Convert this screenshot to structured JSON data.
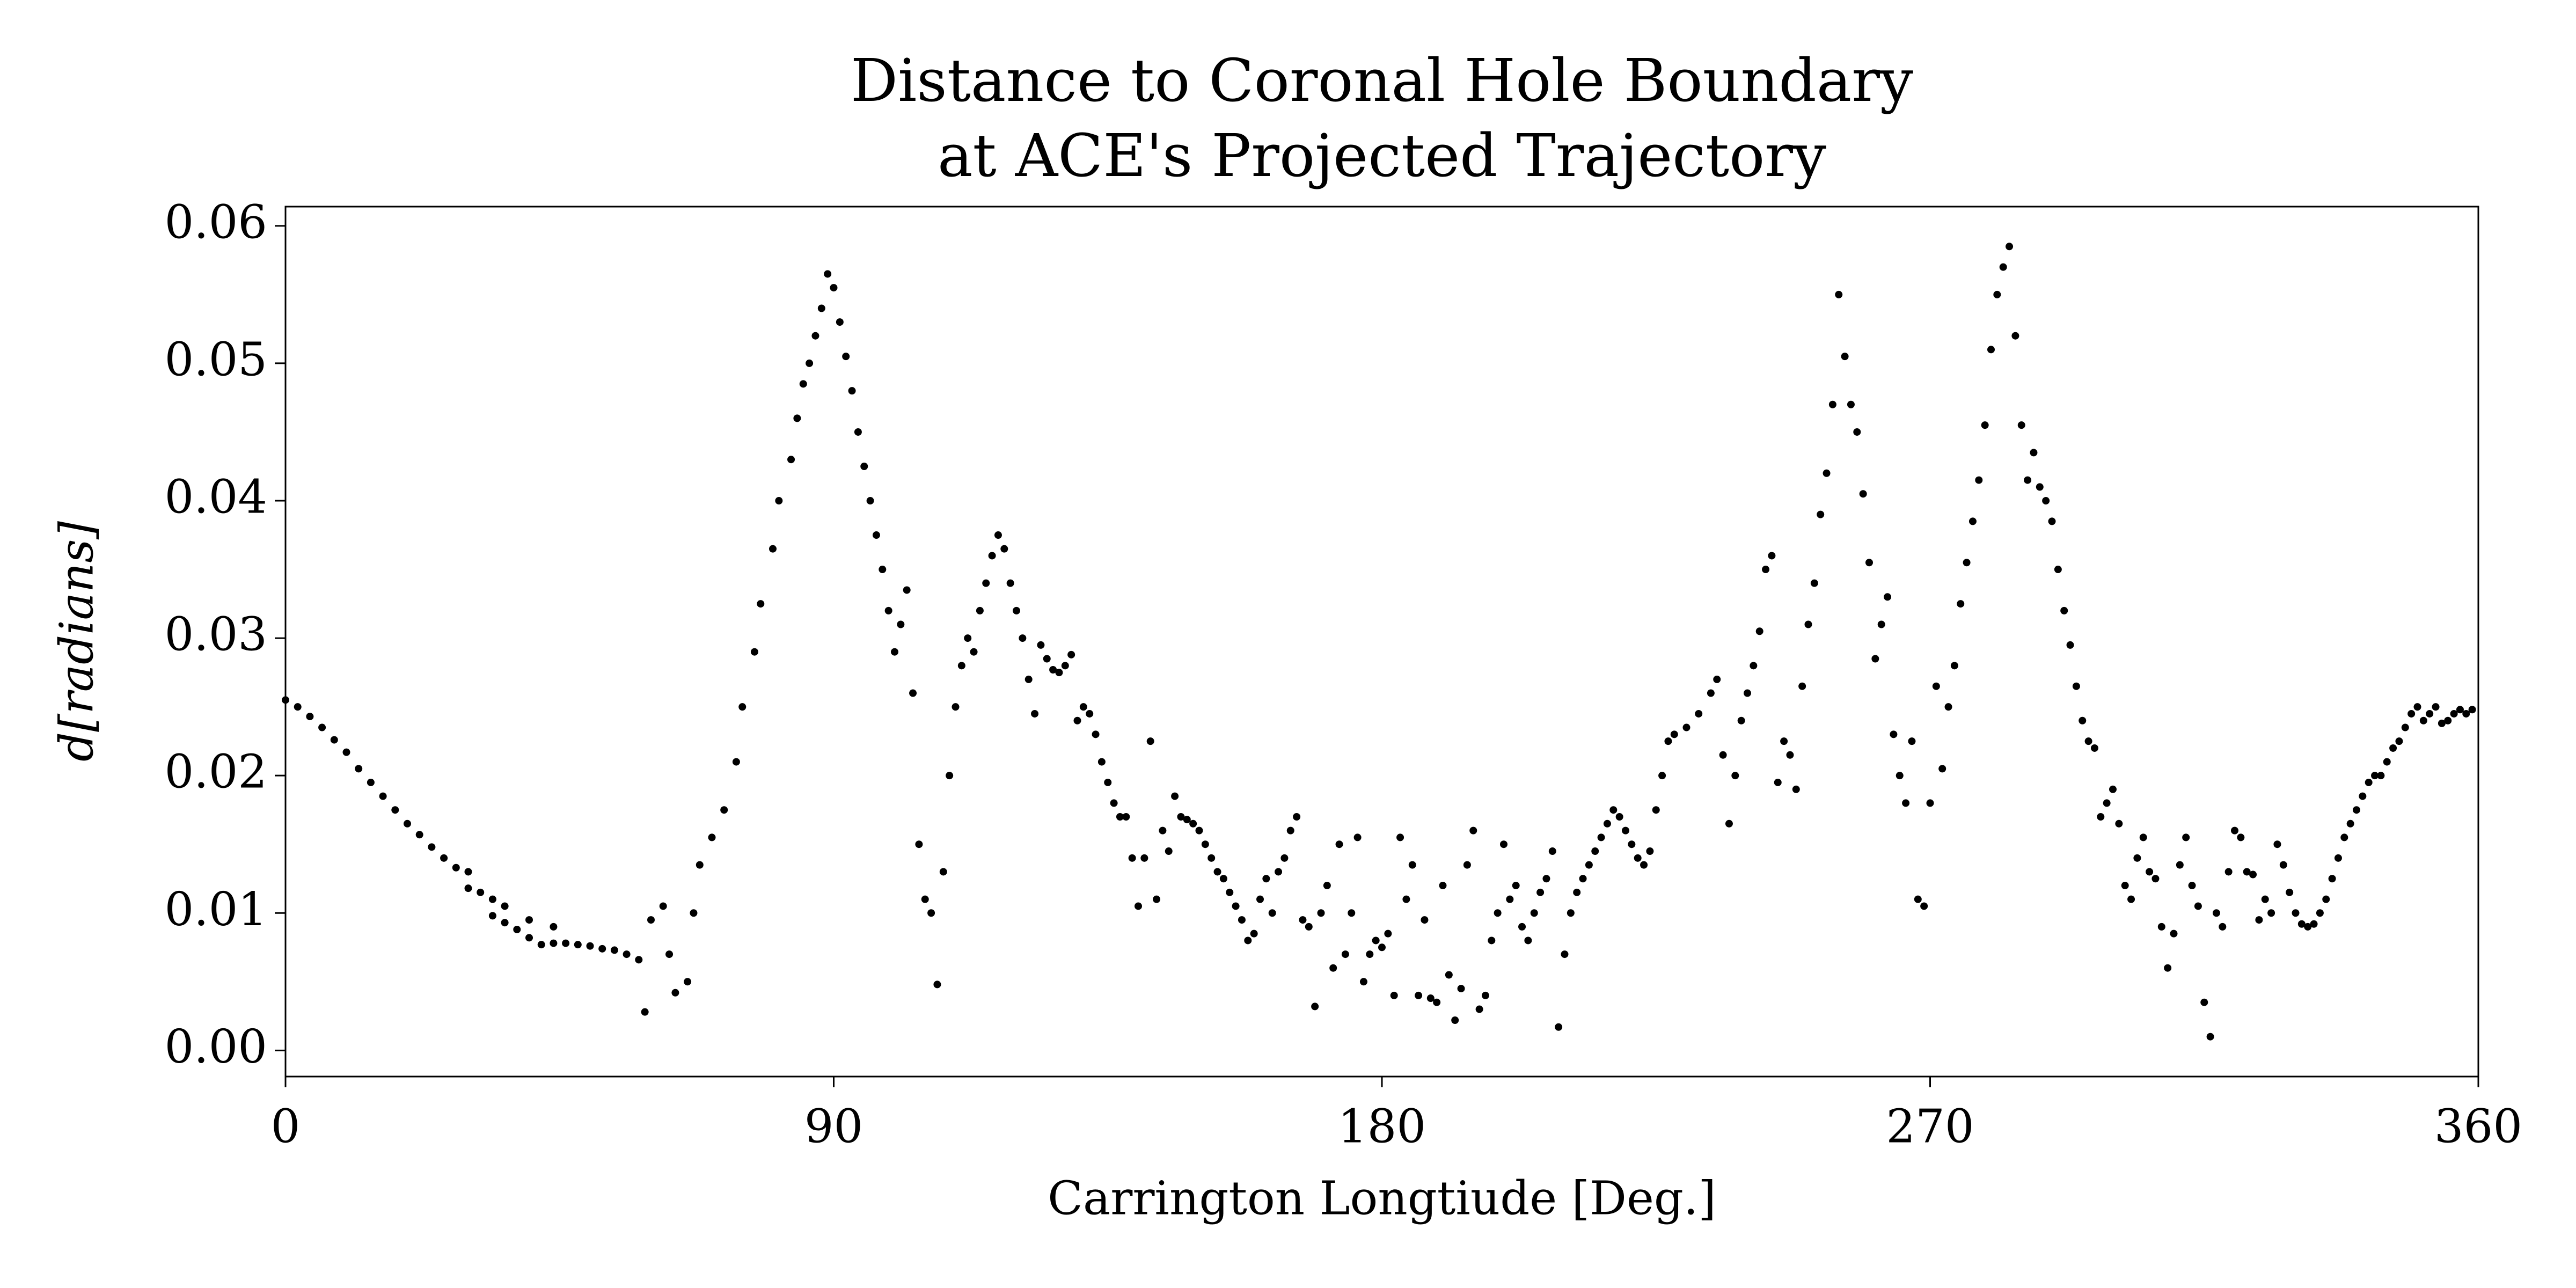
{
  "chart_data": {
    "type": "scatter",
    "title": "Distance to Coronal Hole Boundary\nat ACE's Projected Trajectory",
    "x_label": "Carrington Longtiude [Deg.]",
    "y_label": "d[radians]",
    "color": "#000000",
    "xlim": [
      0,
      360
    ],
    "ylim": [
      -0.0019,
      0.0614
    ],
    "xticks": [
      0,
      90,
      180,
      270,
      360
    ],
    "yticks": [
      {
        "value": 0,
        "label": "0.00"
      },
      {
        "value": 0.01,
        "label": "0.01"
      },
      {
        "value": 0.02,
        "label": "0.02"
      },
      {
        "value": 0.03,
        "label": "0.03"
      },
      {
        "value": 0.04,
        "label": "0.04"
      },
      {
        "value": 0.05,
        "label": "0.05"
      },
      {
        "value": 0.06,
        "label": "0.06"
      }
    ],
    "x": [
      0,
      2,
      4,
      6,
      8,
      10,
      12,
      14,
      16,
      18,
      20,
      22,
      24,
      26,
      28,
      30,
      30,
      32,
      34,
      34,
      36,
      36,
      38,
      40,
      40,
      42,
      44,
      44,
      46,
      48,
      50,
      52,
      54,
      56,
      58,
      59,
      60,
      62,
      63,
      64,
      66,
      67,
      68,
      70,
      72,
      74,
      75,
      77,
      78,
      80,
      81,
      83,
      84,
      85,
      86,
      87,
      88,
      89,
      90,
      91,
      92,
      93,
      94,
      95,
      96,
      97,
      98,
      99,
      100,
      101,
      102,
      103,
      104,
      105,
      106,
      107,
      108,
      109,
      110,
      111,
      112,
      113,
      114,
      115,
      116,
      117,
      118,
      119,
      120,
      121,
      122,
      123,
      124,
      125,
      126,
      127,
      128,
      129,
      130,
      131,
      132,
      133,
      134,
      135,
      136,
      137,
      138,
      139,
      140,
      141,
      142,
      143,
      144,
      145,
      146,
      147,
      148,
      149,
      150,
      151,
      152,
      153,
      154,
      155,
      156,
      157,
      158,
      159,
      160,
      161,
      162,
      163,
      164,
      165,
      166,
      167,
      168,
      169,
      170,
      171,
      172,
      173,
      174,
      175,
      176,
      177,
      178,
      179,
      180,
      181,
      182,
      183,
      184,
      185,
      186,
      187,
      188,
      189,
      190,
      191,
      192,
      193,
      194,
      195,
      196,
      197,
      198,
      199,
      200,
      201,
      202,
      203,
      204,
      205,
      206,
      207,
      208,
      209,
      210,
      211,
      212,
      213,
      214,
      215,
      216,
      217,
      218,
      219,
      220,
      221,
      222,
      223,
      224,
      225,
      226,
      227,
      228,
      230,
      232,
      234,
      235,
      236,
      237,
      238,
      239,
      240,
      241,
      242,
      243,
      244,
      245,
      246,
      247,
      248,
      249,
      250,
      251,
      252,
      253,
      254,
      255,
      256,
      257,
      258,
      259,
      260,
      261,
      262,
      263,
      264,
      265,
      266,
      267,
      268,
      269,
      270,
      271,
      272,
      273,
      274,
      275,
      276,
      277,
      278,
      279,
      280,
      281,
      282,
      283,
      284,
      285,
      286,
      287,
      288,
      289,
      290,
      291,
      292,
      293,
      294,
      295,
      296,
      297,
      298,
      299,
      300,
      301,
      302,
      303,
      304,
      305,
      306,
      307,
      308,
      309,
      310,
      311,
      312,
      313,
      314,
      315,
      316,
      317,
      318,
      319,
      320,
      321,
      322,
      323,
      324,
      325,
      326,
      327,
      328,
      329,
      330,
      331,
      332,
      333,
      334,
      335,
      336,
      337,
      338,
      339,
      340,
      341,
      342,
      343,
      344,
      345,
      346,
      347,
      348,
      349,
      350,
      351,
      352,
      353,
      354,
      355,
      356,
      357,
      358,
      359
    ],
    "values": [
      0.0255,
      0.025,
      0.0243,
      0.0235,
      0.0226,
      0.0217,
      0.0205,
      0.0195,
      0.0185,
      0.0175,
      0.0165,
      0.0157,
      0.0148,
      0.014,
      0.0133,
      0.013,
      0.0118,
      0.0115,
      0.011,
      0.0098,
      0.0093,
      0.0105,
      0.0088,
      0.0082,
      0.0095,
      0.0077,
      0.0078,
      0.009,
      0.0078,
      0.0077,
      0.0076,
      0.0074,
      0.0073,
      0.007,
      0.0066,
      0.0028,
      0.0095,
      0.0105,
      0.007,
      0.0042,
      0.005,
      0.01,
      0.0135,
      0.0155,
      0.0175,
      0.021,
      0.025,
      0.029,
      0.0325,
      0.0365,
      0.04,
      0.043,
      0.046,
      0.0485,
      0.05,
      0.052,
      0.054,
      0.0565,
      0.0555,
      0.053,
      0.0505,
      0.048,
      0.045,
      0.0425,
      0.04,
      0.0375,
      0.035,
      0.032,
      0.029,
      0.031,
      0.0335,
      0.026,
      0.015,
      0.011,
      0.01,
      0.0048,
      0.013,
      0.02,
      0.025,
      0.028,
      0.03,
      0.029,
      0.032,
      0.034,
      0.036,
      0.0375,
      0.0365,
      0.034,
      0.032,
      0.03,
      0.027,
      0.0245,
      0.0295,
      0.0285,
      0.0277,
      0.0275,
      0.028,
      0.0288,
      0.024,
      0.025,
      0.0245,
      0.023,
      0.021,
      0.0195,
      0.018,
      0.017,
      0.017,
      0.014,
      0.0105,
      0.014,
      0.0225,
      0.011,
      0.016,
      0.0145,
      0.0185,
      0.017,
      0.0168,
      0.0165,
      0.016,
      0.015,
      0.014,
      0.013,
      0.0125,
      0.0115,
      0.0105,
      0.0095,
      0.008,
      0.0085,
      0.011,
      0.0125,
      0.01,
      0.013,
      0.014,
      0.016,
      0.017,
      0.0095,
      0.009,
      0.0032,
      0.01,
      0.012,
      0.006,
      0.015,
      0.007,
      0.01,
      0.0155,
      0.005,
      0.007,
      0.008,
      0.0075,
      0.0085,
      0.004,
      0.0155,
      0.011,
      0.0135,
      0.004,
      0.0095,
      0.0038,
      0.0035,
      0.012,
      0.0055,
      0.0022,
      0.0045,
      0.0135,
      0.016,
      0.003,
      0.004,
      0.008,
      0.01,
      0.015,
      0.011,
      0.012,
      0.009,
      0.008,
      0.01,
      0.0115,
      0.0125,
      0.0145,
      0.0017,
      0.007,
      0.01,
      0.0115,
      0.0125,
      0.0135,
      0.0145,
      0.0155,
      0.0165,
      0.0175,
      0.017,
      0.016,
      0.015,
      0.014,
      0.0135,
      0.0145,
      0.0175,
      0.02,
      0.0225,
      0.023,
      0.0235,
      0.0245,
      0.026,
      0.027,
      0.0215,
      0.0165,
      0.02,
      0.024,
      0.026,
      0.028,
      0.0305,
      0.035,
      0.036,
      0.0195,
      0.0225,
      0.0215,
      0.019,
      0.0265,
      0.031,
      0.034,
      0.039,
      0.042,
      0.047,
      0.055,
      0.0505,
      0.047,
      0.045,
      0.0405,
      0.0355,
      0.0285,
      0.031,
      0.033,
      0.023,
      0.02,
      0.018,
      0.0225,
      0.011,
      0.0105,
      0.018,
      0.0265,
      0.0205,
      0.025,
      0.028,
      0.0325,
      0.0355,
      0.0385,
      0.0415,
      0.0455,
      0.051,
      0.055,
      0.057,
      0.0585,
      0.052,
      0.0455,
      0.0415,
      0.0435,
      0.041,
      0.04,
      0.0385,
      0.035,
      0.032,
      0.0295,
      0.0265,
      0.024,
      0.0225,
      0.022,
      0.017,
      0.018,
      0.019,
      0.0165,
      0.012,
      0.011,
      0.014,
      0.0155,
      0.013,
      0.0125,
      0.009,
      0.006,
      0.0085,
      0.0135,
      0.0155,
      0.012,
      0.0105,
      0.0035,
      0.001,
      0.01,
      0.009,
      0.013,
      0.016,
      0.0155,
      0.013,
      0.0128,
      0.0095,
      0.011,
      0.01,
      0.015,
      0.0135,
      0.0115,
      0.01,
      0.0092,
      0.009,
      0.0092,
      0.01,
      0.011,
      0.0125,
      0.014,
      0.0155,
      0.0165,
      0.0175,
      0.0185,
      0.0195,
      0.02,
      0.02,
      0.021,
      0.022,
      0.0225,
      0.0235,
      0.0245,
      0.025,
      0.024,
      0.0245,
      0.025,
      0.0238,
      0.024,
      0.0245,
      0.0248,
      0.0245,
      0.0248
    ]
  }
}
